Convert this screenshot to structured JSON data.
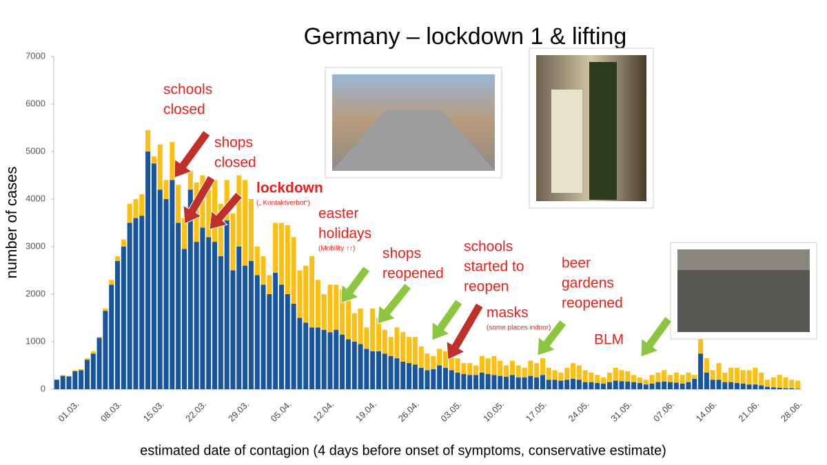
{
  "chart_data": {
    "type": "stacked-bar",
    "title": "Germany – lockdown 1 & lifting",
    "x_label": "estimated date of contagion (4 days before onset of symptoms, conservative estimate)",
    "y_label": "number of cases",
    "ylim": [
      0,
      7000
    ],
    "yticks": [
      0,
      1000,
      2000,
      3000,
      4000,
      5000,
      6000,
      7000
    ],
    "grid": false,
    "categories": [
      null,
      null,
      null,
      "01.03.",
      null,
      null,
      null,
      null,
      null,
      null,
      "08.03.",
      null,
      null,
      null,
      null,
      null,
      null,
      "15.03.",
      null,
      null,
      null,
      null,
      null,
      null,
      "22.03.",
      null,
      null,
      null,
      null,
      null,
      null,
      "29.03.",
      null,
      null,
      null,
      null,
      null,
      null,
      "05.04.",
      null,
      null,
      null,
      null,
      null,
      null,
      "12.04.",
      null,
      null,
      null,
      null,
      null,
      null,
      "19.04.",
      null,
      null,
      null,
      null,
      null,
      null,
      "26.04.",
      null,
      null,
      null,
      null,
      null,
      null,
      "03.05.",
      null,
      null,
      null,
      null,
      null,
      null,
      "10.05.",
      null,
      null,
      null,
      null,
      null,
      null,
      "17.05.",
      null,
      null,
      null,
      null,
      null,
      null,
      "24.05.",
      null,
      null,
      null,
      null,
      null,
      null,
      "31.05.",
      null,
      null,
      null,
      null,
      null,
      null,
      "07.06.",
      null,
      null,
      null,
      null,
      null,
      null,
      "14.06.",
      null,
      null,
      null,
      null,
      null,
      null,
      "21.06.",
      null,
      null,
      null,
      null,
      null,
      null,
      "28.06."
    ],
    "series": [
      {
        "color": "#17559f",
        "values": [
          200,
          280,
          270,
          380,
          400,
          620,
          750,
          1080,
          1650,
          2200,
          2700,
          3000,
          3500,
          3600,
          3650,
          5000,
          4750,
          4200,
          4000,
          4400,
          3500,
          2950,
          4200,
          3100,
          3400,
          3200,
          3100,
          2800,
          3550,
          2500,
          3000,
          2600,
          2700,
          2400,
          2200,
          2000,
          2450,
          2200,
          2000,
          1800,
          1500,
          1400,
          1300,
          1300,
          1250,
          1200,
          1250,
          1150,
          1050,
          1000,
          950,
          850,
          800,
          800,
          750,
          700,
          650,
          580,
          550,
          520,
          450,
          400,
          420,
          500,
          450,
          400,
          350,
          320,
          300,
          300,
          350,
          320,
          300,
          280,
          260,
          300,
          250,
          250,
          280,
          250,
          300,
          200,
          200,
          180,
          200,
          220,
          200,
          150,
          150,
          130,
          120,
          150,
          180,
          170,
          160,
          150,
          130,
          100,
          120,
          150,
          160,
          150,
          140,
          120,
          150,
          220,
          750,
          350,
          200,
          200,
          150,
          150,
          130,
          120,
          100,
          100,
          80,
          50,
          40,
          30,
          20,
          20,
          10
        ]
      },
      {
        "color": "#fdbf12",
        "values": [
          0,
          20,
          10,
          20,
          20,
          30,
          50,
          20,
          50,
          100,
          100,
          150,
          400,
          400,
          450,
          450,
          150,
          950,
          400,
          800,
          800,
          650,
          400,
          1250,
          1100,
          1000,
          1300,
          1100,
          850,
          1200,
          1500,
          1800,
          1300,
          600,
          600,
          400,
          1050,
          1300,
          1450,
          1400,
          1000,
          1200,
          1500,
          1000,
          750,
          1000,
          950,
          950,
          850,
          600,
          750,
          450,
          900,
          700,
          500,
          400,
          650,
          620,
          550,
          580,
          450,
          350,
          280,
          350,
          350,
          300,
          300,
          230,
          250,
          200,
          350,
          330,
          400,
          320,
          240,
          300,
          250,
          200,
          320,
          300,
          350,
          250,
          200,
          170,
          250,
          330,
          300,
          250,
          200,
          170,
          130,
          200,
          270,
          230,
          220,
          150,
          120,
          100,
          180,
          200,
          240,
          150,
          210,
          180,
          200,
          80,
          300,
          300,
          200,
          350,
          200,
          300,
          320,
          280,
          300,
          350,
          270,
          150,
          210,
          270,
          230,
          180,
          170
        ]
      }
    ],
    "annotations": [
      {
        "lines": [
          "schools",
          "closed"
        ]
      },
      {
        "lines": [
          "shops",
          "closed"
        ]
      },
      {
        "lines": [
          "lockdown"
        ],
        "note": "(„ Kontaktverbot“)"
      },
      {
        "lines": [
          "easter",
          "holidays"
        ],
        "note": "(Mobility ↑↑)"
      },
      {
        "lines": [
          "shops",
          "reopened"
        ]
      },
      {
        "lines": [
          "schools",
          "started to",
          "reopen"
        ]
      },
      {
        "lines": [
          "masks"
        ],
        "note": "(some places indoor)"
      },
      {
        "lines": [
          "beer",
          "gardens",
          "reopened"
        ]
      },
      {
        "lines": [
          "BLM"
        ]
      }
    ]
  }
}
